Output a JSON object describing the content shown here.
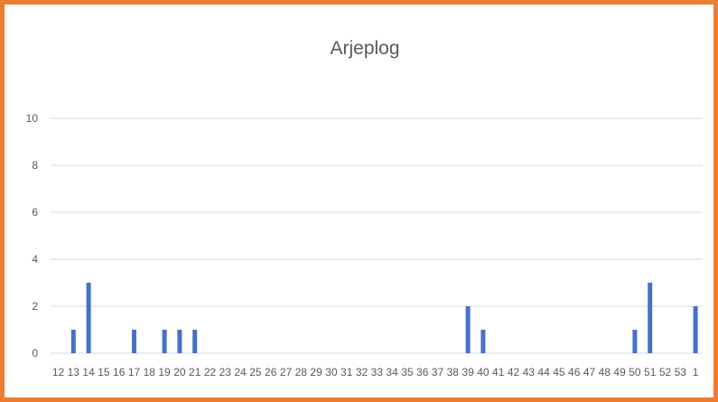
{
  "chart_data": {
    "type": "bar",
    "title": "Arjeplog",
    "xlabel": "",
    "ylabel": "",
    "ylim": [
      0,
      10
    ],
    "yticks": [
      "0",
      "2",
      "4",
      "6",
      "8",
      "10"
    ],
    "grid": true,
    "legend": "none",
    "bar_color": "#4472c4",
    "categories": [
      "12",
      "13",
      "14",
      "15",
      "16",
      "17",
      "18",
      "19",
      "20",
      "21",
      "22",
      "23",
      "24",
      "25",
      "26",
      "27",
      "28",
      "29",
      "30",
      "31",
      "32",
      "33",
      "34",
      "35",
      "36",
      "37",
      "38",
      "39",
      "40",
      "41",
      "42",
      "43",
      "44",
      "45",
      "46",
      "47",
      "48",
      "49",
      "50",
      "51",
      "52",
      "53",
      "1"
    ],
    "values": [
      0,
      1,
      3,
      0,
      0,
      1,
      0,
      1,
      1,
      1,
      0,
      0,
      0,
      0,
      0,
      0,
      0,
      0,
      0,
      0,
      0,
      0,
      0,
      0,
      0,
      0,
      0,
      2,
      1,
      0,
      0,
      0,
      0,
      0,
      0,
      0,
      0,
      0,
      1,
      3,
      0,
      0,
      2
    ]
  }
}
